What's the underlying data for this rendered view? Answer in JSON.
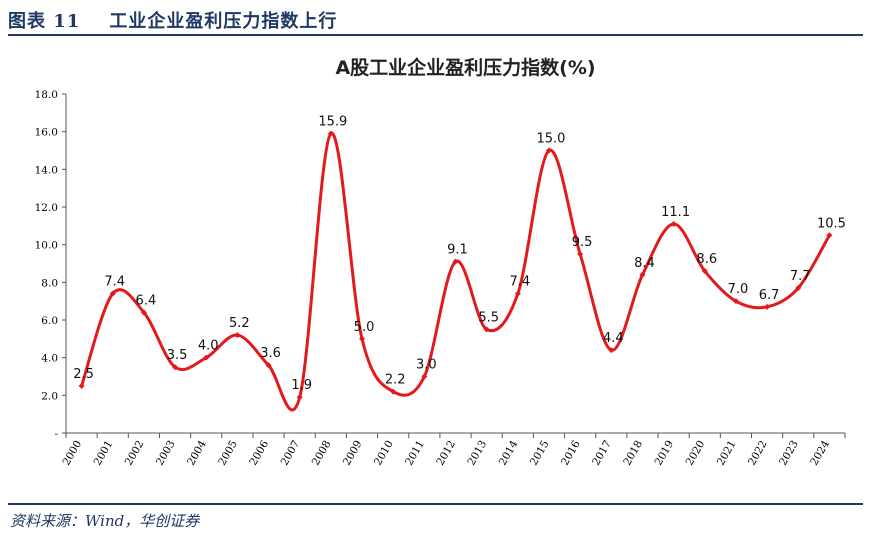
{
  "figure": {
    "title": "图表 11    工业企业盈利压力指数上行",
    "source": "资料来源：Wind，华创证券"
  },
  "chart_data": {
    "type": "line",
    "title": "A股工业企业盈利压力指数(%)",
    "xlabel": "",
    "ylabel": "",
    "ylim": [
      0,
      18
    ],
    "y_ticks": [
      "-",
      "2.0",
      "4.0",
      "6.0",
      "8.0",
      "10.0",
      "12.0",
      "14.0",
      "16.0",
      "18.0"
    ],
    "categories": [
      "2000",
      "2001",
      "2002",
      "2003",
      "2004",
      "2005",
      "2006",
      "2007",
      "2008",
      "2009",
      "2010",
      "2011",
      "2012",
      "2013",
      "2014",
      "2015",
      "2016",
      "2017",
      "2018",
      "2019",
      "2020",
      "2021",
      "2022",
      "2023",
      "2024"
    ],
    "series": [
      {
        "values": [
          2.5,
          7.4,
          6.4,
          3.5,
          4.0,
          5.2,
          3.6,
          1.9,
          15.9,
          5.0,
          2.2,
          3.0,
          9.1,
          5.5,
          7.4,
          15.0,
          9.5,
          4.4,
          8.4,
          11.1,
          8.6,
          7.0,
          6.7,
          7.7,
          10.5
        ],
        "labels": [
          "2.5",
          "7.4",
          "6.4",
          "3.5",
          "4.0",
          "5.2",
          "3.6",
          "1.9",
          "15.9",
          "5.0",
          "2.2",
          "3.0",
          "9.1",
          "5.5",
          "7.4",
          "15.0",
          "9.5",
          "4.4",
          "8.4",
          "11.1",
          "8.6",
          "7.0",
          "6.7",
          "7.7",
          "10.5"
        ],
        "color": "#e31a1c"
      }
    ],
    "smooth": true,
    "markers": "small-diamond",
    "grid": false,
    "legend": "none"
  }
}
